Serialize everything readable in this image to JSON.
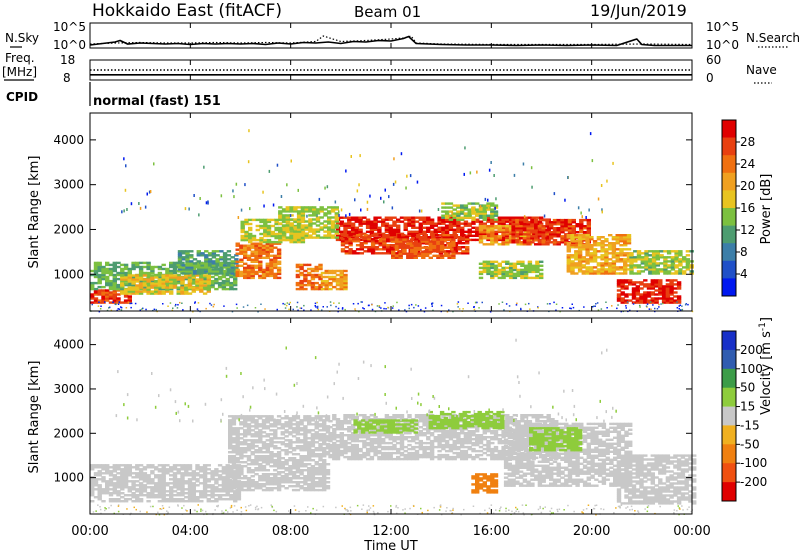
{
  "header": {
    "station": "Hokkaido East (fitACF)",
    "beam": "Beam 01",
    "date": "19/Jun/2019"
  },
  "colors": {
    "power": [
      "#0018f0",
      "#2050c8",
      "#3c7ea8",
      "#4d9c70",
      "#7cc040",
      "#e8c420",
      "#f0a020",
      "#f07010",
      "#e84010",
      "#e00000"
    ],
    "velocity": [
      "#e00000",
      "#f05010",
      "#f08010",
      "#f0b020",
      "#c8c8c8",
      "#8ecc3c",
      "#3c9c48",
      "#305cb0",
      "#1830c8"
    ]
  },
  "chart_data": [
    {
      "type": "line",
      "panel": "noise",
      "left_label": "N.Sky",
      "right_label": "N.Search",
      "left_ticks": [
        "10^5",
        "10^0"
      ],
      "right_ticks": [
        "10^5",
        "10^0"
      ],
      "series": [
        {
          "style": "solid",
          "x_hours": [
            0,
            1,
            1.2,
            1.5,
            2,
            2.5,
            3,
            3.5,
            4,
            4.5,
            5,
            5.5,
            6,
            6.5,
            7,
            7.5,
            8,
            8.5,
            9,
            9.5,
            10,
            10.5,
            11,
            11.5,
            12,
            12.5,
            12.7,
            13,
            14,
            15,
            16,
            17,
            18,
            19,
            20,
            21,
            21.8,
            22,
            22.5,
            23,
            24
          ],
          "y_log": [
            0.6,
            1.2,
            1.5,
            0.8,
            1.0,
            0.9,
            0.8,
            0.9,
            0.7,
            0.9,
            0.8,
            0.9,
            0.8,
            0.9,
            0.7,
            1.0,
            0.8,
            1.1,
            1.0,
            1.2,
            0.9,
            1.3,
            1.2,
            1.5,
            1.4,
            1.9,
            2.3,
            0.9,
            0.7,
            0.6,
            0.6,
            0.5,
            0.6,
            0.5,
            0.6,
            0.5,
            1.8,
            0.7,
            0.5,
            0.5,
            0.5
          ]
        },
        {
          "style": "dotted",
          "x_hours": [
            0,
            1,
            2,
            3,
            4,
            5,
            6,
            7,
            8,
            9,
            9.3,
            10,
            11,
            12,
            12.5,
            12.8,
            13,
            14,
            16,
            18,
            20,
            22,
            24
          ],
          "y_log": [
            0.8,
            1.0,
            1.1,
            1.0,
            1.0,
            1.1,
            1.0,
            1.1,
            1.0,
            1.3,
            2.4,
            1.3,
            1.5,
            1.8,
            2.0,
            2.4,
            1.0,
            0.8,
            0.7,
            0.7,
            0.7,
            0.8,
            0.7
          ]
        }
      ],
      "xlim": [
        0,
        24
      ]
    },
    {
      "type": "line",
      "panel": "frequency",
      "left_label": "Freq.",
      "left_unit": "[MHz]",
      "right_label": "Nave",
      "left_ticks": [
        "18",
        "8"
      ],
      "right_ticks": [
        "60",
        "0"
      ],
      "series": [
        {
          "style": "dotted",
          "x_hours": [
            0,
            24
          ],
          "nave": [
            30,
            30
          ]
        },
        {
          "style": "solid",
          "x_hours": [
            0,
            24
          ],
          "freq_mhz": [
            10.6,
            10.6
          ]
        }
      ],
      "xlim": [
        0,
        24
      ]
    },
    {
      "type": "table",
      "panel": "cpid",
      "label": "CPID",
      "value": "normal (fast) 151"
    },
    {
      "type": "heatmap",
      "panel": "power",
      "ylabel": "Slant Range [km]",
      "yticks": [
        1000,
        2000,
        3000,
        4000
      ],
      "ylim": [
        180,
        4600
      ],
      "colorbar_label": "Power [dB]",
      "colorbar_ticks": [
        "28",
        "24",
        "20",
        "16",
        "12",
        "8",
        "4"
      ],
      "clim": [
        0,
        30
      ],
      "xlim": [
        0,
        24
      ],
      "regions": [
        {
          "t0": 9.8,
          "t1": 18.2,
          "r0": 1750,
          "r1": 2250,
          "value": 27
        },
        {
          "t0": 10.0,
          "t1": 15.0,
          "r0": 1450,
          "r1": 1900,
          "value": 26
        },
        {
          "t0": 12.0,
          "t1": 14.5,
          "r0": 1350,
          "r1": 1800,
          "value": 24
        },
        {
          "t0": 15.5,
          "t1": 17.5,
          "r0": 1650,
          "r1": 2100,
          "value": 20
        },
        {
          "t0": 16.8,
          "t1": 19.8,
          "r0": 1650,
          "r1": 2200,
          "value": 26
        },
        {
          "t0": 19.0,
          "t1": 21.5,
          "r0": 1000,
          "r1": 1900,
          "value": 19
        },
        {
          "t0": 21.0,
          "t1": 23.5,
          "r0": 350,
          "r1": 850,
          "value": 27
        },
        {
          "t0": 0.0,
          "t1": 1.5,
          "r0": 350,
          "r1": 650,
          "value": 26
        },
        {
          "t0": 0.0,
          "t1": 5.8,
          "r0": 650,
          "r1": 1250,
          "value": 12
        },
        {
          "t0": 1.2,
          "t1": 4.8,
          "r0": 550,
          "r1": 1000,
          "value": 17
        },
        {
          "t0": 3.5,
          "t1": 5.8,
          "r0": 1000,
          "r1": 1500,
          "value": 11
        },
        {
          "t0": 5.8,
          "t1": 7.5,
          "r0": 900,
          "r1": 1700,
          "value": 22
        },
        {
          "t0": 6.0,
          "t1": 8.5,
          "r0": 1700,
          "r1": 2200,
          "value": 15
        },
        {
          "t0": 7.5,
          "t1": 9.8,
          "r0": 1800,
          "r1": 2500,
          "value": 15
        },
        {
          "t0": 8.2,
          "t1": 9.2,
          "r0": 650,
          "r1": 1200,
          "value": 23
        },
        {
          "t0": 9.2,
          "t1": 10.2,
          "r0": 650,
          "r1": 1100,
          "value": 20
        },
        {
          "t0": 14.0,
          "t1": 16.2,
          "r0": 2200,
          "r1": 2600,
          "value": 14
        },
        {
          "t0": 15.5,
          "t1": 18.0,
          "r0": 900,
          "r1": 1300,
          "value": 14
        },
        {
          "t0": 21.5,
          "t1": 24.0,
          "r0": 1000,
          "r1": 1500,
          "value": 14
        }
      ]
    },
    {
      "type": "heatmap",
      "panel": "velocity",
      "ylabel": "Slant Range [km]",
      "yticks": [
        1000,
        2000,
        3000,
        4000
      ],
      "ylim": [
        180,
        4600
      ],
      "xlabel": "Time UT",
      "xticks": [
        "00:00",
        "04:00",
        "08:00",
        "12:00",
        "16:00",
        "20:00",
        "00:00"
      ],
      "xtick_hours": [
        0,
        4,
        8,
        12,
        16,
        20,
        24
      ],
      "colorbar_label": "Velocity [m s^-1]",
      "colorbar_ticks": [
        "200",
        "100",
        "50",
        "15",
        "-15",
        "-50",
        "-100",
        "-200"
      ],
      "xlim": [
        0,
        24
      ],
      "regions": [
        {
          "t0": 0.0,
          "t1": 6.0,
          "r0": 450,
          "r1": 1300,
          "value": 0
        },
        {
          "t0": 5.5,
          "t1": 9.5,
          "r0": 700,
          "r1": 2400,
          "value": 0
        },
        {
          "t0": 9.5,
          "t1": 18.5,
          "r0": 1400,
          "r1": 2400,
          "value": 0
        },
        {
          "t0": 16.5,
          "t1": 21.5,
          "r0": 800,
          "r1": 2200,
          "value": 0
        },
        {
          "t0": 21.0,
          "t1": 24.0,
          "r0": 400,
          "r1": 1500,
          "value": 0
        },
        {
          "t0": 10.5,
          "t1": 13.0,
          "r0": 2000,
          "r1": 2300,
          "value": 30
        },
        {
          "t0": 13.5,
          "t1": 16.5,
          "r0": 2100,
          "r1": 2500,
          "value": 25
        },
        {
          "t0": 17.5,
          "t1": 19.5,
          "r0": 1600,
          "r1": 2100,
          "value": 20
        },
        {
          "t0": 15.2,
          "t1": 16.2,
          "r0": 650,
          "r1": 1100,
          "value": -40
        }
      ]
    }
  ]
}
